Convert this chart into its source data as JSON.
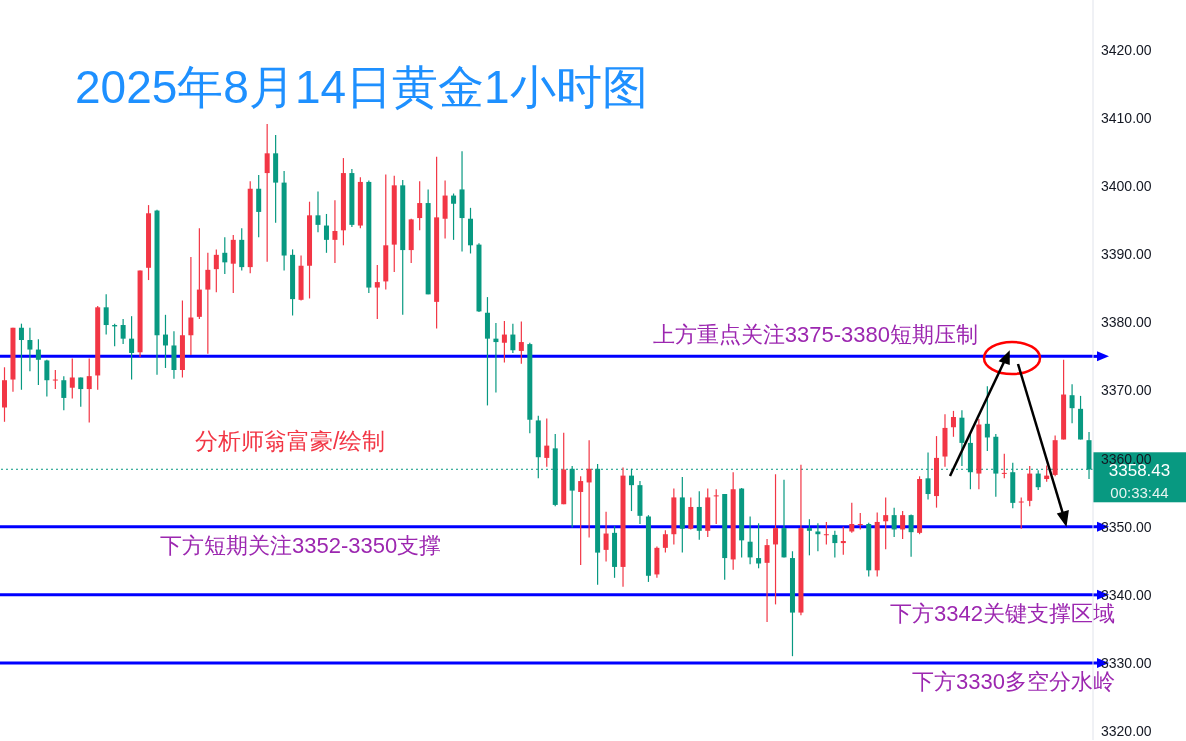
{
  "chart_data": {
    "type": "candlestick",
    "title": "2025年8月14日黄金1小时图",
    "categories": [
      null,
      null,
      null,
      null,
      null,
      null,
      null,
      null,
      null,
      null,
      null,
      null,
      null,
      null,
      null,
      null,
      null,
      null,
      null,
      null,
      null,
      null,
      null,
      null,
      null,
      null,
      null,
      null,
      null,
      null,
      null,
      null,
      null,
      null,
      null,
      null,
      null,
      null,
      null,
      null,
      null,
      null,
      null,
      null,
      null,
      null,
      null,
      null,
      null,
      null,
      null,
      null,
      null,
      null,
      null,
      null,
      null,
      null,
      null,
      null,
      null,
      null,
      null,
      null,
      null,
      null,
      null,
      null,
      null,
      null,
      null,
      null,
      null,
      null,
      null,
      null,
      null,
      null,
      null,
      null,
      null,
      null,
      null,
      null,
      null,
      null,
      null,
      null,
      null,
      null,
      null,
      null,
      null,
      null,
      null,
      null,
      null,
      null,
      null,
      null,
      null,
      null,
      null,
      null,
      null,
      null,
      null,
      null,
      null,
      null,
      null,
      null,
      null,
      null,
      null,
      null,
      null,
      null,
      null,
      null,
      null,
      null,
      null,
      null,
      null,
      null,
      null,
      null,
      null
    ],
    "ohlc": [
      [
        3367.5,
        3373.4,
        3365.4,
        3371.5
      ],
      [
        3371.6,
        3379.2,
        3369.8,
        3379.2
      ],
      [
        3379.2,
        3379.8,
        3370.1,
        3377.4
      ],
      [
        3377.4,
        3379.2,
        3372.8,
        3376.0
      ],
      [
        3376.0,
        3377.5,
        3370.8,
        3374.5
      ],
      [
        3374.4,
        3374.5,
        3369.1,
        3371.5
      ],
      [
        3371.5,
        3373.0,
        3370.2,
        3371.6
      ],
      [
        3371.5,
        3372.1,
        3367.1,
        3368.9
      ],
      [
        3370.4,
        3374.7,
        3368.8,
        3371.9
      ],
      [
        3371.9,
        3371.9,
        3367.6,
        3370.2
      ],
      [
        3370.2,
        3374.7,
        3365.3,
        3372.1
      ],
      [
        3372.2,
        3382.4,
        3370.1,
        3382.2
      ],
      [
        3382.2,
        3384.1,
        3378.2,
        3379.6
      ],
      [
        3379.6,
        3379.8,
        3376.5,
        3379.4
      ],
      [
        3379.6,
        3380.5,
        3376.8,
        3377.6
      ],
      [
        3377.6,
        3380.9,
        3371.6,
        3375.5
      ],
      [
        3375.6,
        3387.6,
        3374.9,
        3387.6
      ],
      [
        3388.0,
        3397.2,
        3386.2,
        3396.0
      ],
      [
        3396.4,
        3396.5,
        3372.3,
        3378.1
      ],
      [
        3378.2,
        3381.1,
        3373.3,
        3376.6
      ],
      [
        3376.6,
        3378.7,
        3371.7,
        3373.0
      ],
      [
        3373.0,
        3383.2,
        3371.9,
        3378.1
      ],
      [
        3378.1,
        3389.6,
        3375.2,
        3380.7
      ],
      [
        3380.8,
        3393.8,
        3380.5,
        3384.8
      ],
      [
        3384.8,
        3390.2,
        3375.4,
        3387.7
      ],
      [
        3387.8,
        3390.7,
        3384.4,
        3389.9
      ],
      [
        3390.2,
        3392.5,
        3387.1,
        3388.8
      ],
      [
        3388.6,
        3392.8,
        3384.3,
        3392.1
      ],
      [
        3392.1,
        3393.8,
        3387.6,
        3388.1
      ],
      [
        3388.1,
        3400.7,
        3387.2,
        3399.6
      ],
      [
        3399.6,
        3401.6,
        3392.5,
        3396.2
      ],
      [
        3401.9,
        3409.1,
        3388.9,
        3404.8
      ],
      [
        3404.8,
        3407.5,
        3394.6,
        3400.5
      ],
      [
        3400.5,
        3402.2,
        3387.6,
        3389.8
      ],
      [
        3389.9,
        3390.7,
        3381.0,
        3383.4
      ],
      [
        3383.3,
        3389.8,
        3383.2,
        3388.3
      ],
      [
        3388.3,
        3397.7,
        3383.5,
        3395.7
      ],
      [
        3395.7,
        3399.2,
        3393.2,
        3394.3
      ],
      [
        3394.2,
        3395.9,
        3390.2,
        3392.1
      ],
      [
        3392.1,
        3397.9,
        3388.7,
        3393.4
      ],
      [
        3393.5,
        3404.1,
        3391.3,
        3401.9
      ],
      [
        3401.9,
        3402.5,
        3394.0,
        3394.3
      ],
      [
        3394.2,
        3401.3,
        3393.8,
        3400.6
      ],
      [
        3400.6,
        3400.8,
        3384.3,
        3385.1
      ],
      [
        3385.1,
        3388.4,
        3380.5,
        3385.9
      ],
      [
        3386.0,
        3401.7,
        3384.8,
        3391.3
      ],
      [
        3391.4,
        3401.5,
        3387.4,
        3400.1
      ],
      [
        3400.1,
        3400.9,
        3381.1,
        3390.6
      ],
      [
        3390.6,
        3395.2,
        3388.7,
        3395.1
      ],
      [
        3395.3,
        3400.7,
        3393.5,
        3397.5
      ],
      [
        3397.5,
        3399.5,
        3384.1,
        3384.1
      ],
      [
        3383.0,
        3404.3,
        3379.1,
        3395.4
      ],
      [
        3395.2,
        3400.8,
        3392.3,
        3398.6
      ],
      [
        3398.6,
        3398.9,
        3392.1,
        3397.4
      ],
      [
        3399.5,
        3405.1,
        3390.4,
        3395.3
      ],
      [
        3395.2,
        3396.8,
        3390.1,
        3391.3
      ],
      [
        3391.4,
        3391.6,
        3381.5,
        3381.6
      ],
      [
        3381.4,
        3383.7,
        3367.8,
        3377.6
      ],
      [
        3377.6,
        3379.9,
        3369.7,
        3377.1
      ],
      [
        3377.0,
        3380.2,
        3374.1,
        3378.2
      ],
      [
        3378.2,
        3379.8,
        3375.5,
        3375.9
      ],
      [
        3375.8,
        3380.1,
        3373.9,
        3377.1
      ],
      [
        3376.8,
        3377.0,
        3363.7,
        3365.7
      ],
      [
        3365.6,
        3366.3,
        3357.1,
        3360.2
      ],
      [
        3360.1,
        3365.9,
        3358.8,
        3361.9
      ],
      [
        3361.5,
        3363.6,
        3353.0,
        3353.2
      ],
      [
        3353.3,
        3363.8,
        3353.3,
        3358.4
      ],
      [
        3358.5,
        3358.9,
        3349.9,
        3355.3
      ],
      [
        3355.1,
        3357.4,
        3344.4,
        3356.7
      ],
      [
        3356.5,
        3362.7,
        3348.4,
        3358.5
      ],
      [
        3358.5,
        3359.2,
        3341.5,
        3346.2
      ],
      [
        3346.6,
        3352.2,
        3344.9,
        3349.0
      ],
      [
        3349.1,
        3350.1,
        3342.5,
        3344.1
      ],
      [
        3344.1,
        3358.7,
        3341.2,
        3357.5
      ],
      [
        3357.5,
        3358.5,
        3352.3,
        3356.1
      ],
      [
        3356.1,
        3356.7,
        3350.4,
        3351.6
      ],
      [
        3351.5,
        3351.7,
        3341.9,
        3342.8
      ],
      [
        3343.0,
        3347.1,
        3342.5,
        3346.9
      ],
      [
        3346.9,
        3349.5,
        3346.2,
        3348.9
      ],
      [
        3348.9,
        3355.6,
        3347.4,
        3354.3
      ],
      [
        3354.3,
        3357.3,
        3346.2,
        3349.7
      ],
      [
        3349.7,
        3354.3,
        3349.6,
        3352.9
      ],
      [
        3352.9,
        3355.2,
        3348.1,
        3349.4
      ],
      [
        3349.4,
        3355.6,
        3348.5,
        3354.3
      ],
      [
        3354.5,
        3355.5,
        3350.4,
        3354.6
      ],
      [
        3354.8,
        3354.8,
        3342.2,
        3345.4
      ],
      [
        3345.2,
        3358.0,
        3343.7,
        3355.5
      ],
      [
        3355.6,
        3355.7,
        3345.5,
        3348.0
      ],
      [
        3347.8,
        3351.5,
        3344.5,
        3345.5
      ],
      [
        3345.4,
        3350.5,
        3343.9,
        3344.6
      ],
      [
        3344.7,
        3348.2,
        3336.0,
        3347.3
      ],
      [
        3347.4,
        3357.7,
        3338.6,
        3349.8
      ],
      [
        3349.8,
        3356.9,
        3345.5,
        3345.5
      ],
      [
        3345.4,
        3346.4,
        3331.0,
        3337.4
      ],
      [
        3337.4,
        3359.1,
        3337.0,
        3349.8
      ],
      [
        3349.8,
        3351.1,
        3345.8,
        3349.4
      ],
      [
        3349.3,
        3350.5,
        3346.4,
        3348.9
      ],
      [
        3348.8,
        3350.7,
        3347.4,
        3348.9
      ],
      [
        3348.8,
        3349.4,
        3345.5,
        3347.6
      ],
      [
        3347.6,
        3350.0,
        3345.9,
        3347.9
      ],
      [
        3349.3,
        3353.5,
        3349.1,
        3350.4
      ],
      [
        3350.3,
        3352.0,
        3349.6,
        3350.4
      ],
      [
        3350.4,
        3350.6,
        3342.7,
        3343.6
      ],
      [
        3343.6,
        3352.1,
        3342.7,
        3350.7
      ],
      [
        3350.8,
        3354.3,
        3346.7,
        3351.7
      ],
      [
        3351.7,
        3352.8,
        3348.5,
        3349.6
      ],
      [
        3349.6,
        3352.3,
        3348.2,
        3351.7
      ],
      [
        3351.7,
        3351.8,
        3345.6,
        3349.2
      ],
      [
        3349.1,
        3357.4,
        3348.9,
        3357.0
      ],
      [
        3357.1,
        3360.9,
        3354.0,
        3354.8
      ],
      [
        3354.5,
        3363.3,
        3352.8,
        3360.1
      ],
      [
        3360.3,
        3366.5,
        3358.8,
        3364.5
      ],
      [
        3364.6,
        3367.0,
        3363.2,
        3366.1
      ],
      [
        3366.0,
        3367.1,
        3358.9,
        3362.3
      ],
      [
        3362.3,
        3363.7,
        3355.5,
        3358.0
      ],
      [
        3357.8,
        3365.8,
        3355.5,
        3365.0
      ],
      [
        3365.1,
        3370.6,
        3361.1,
        3363.1
      ],
      [
        3363.2,
        3363.6,
        3354.4,
        3357.8
      ],
      [
        3357.8,
        3360.7,
        3357.1,
        3357.9
      ],
      [
        3358.0,
        3359.4,
        3352.7,
        3353.5
      ],
      [
        3353.6,
        3354.3,
        3349.7,
        3353.7
      ],
      [
        3353.8,
        3358.9,
        3353.0,
        3357.8
      ],
      [
        3357.8,
        3358.3,
        3355.4,
        3355.8
      ],
      [
        3357.0,
        3359.0,
        3356.6,
        3357.5
      ],
      [
        3357.6,
        3363.4,
        3357.4,
        3362.7
      ],
      [
        3362.8,
        3374.5,
        3362.8,
        3369.4
      ],
      [
        3369.3,
        3370.9,
        3365.2,
        3367.4
      ],
      [
        3367.3,
        3369.2,
        3362.8,
        3362.8
      ],
      [
        3362.7,
        3363.9,
        3357.0,
        3358.4
      ]
    ],
    "ylim": [
      3318.7,
      3427.3
    ],
    "yticks": [
      {
        "value": 3320,
        "label": "3320.00"
      },
      {
        "value": 3330,
        "label": "3330.00"
      },
      {
        "value": 3340,
        "label": "3340.00"
      },
      {
        "value": 3350,
        "label": "3350.00"
      },
      {
        "value": 3360,
        "label": "3360.00"
      },
      {
        "value": 3370,
        "label": "3370.00"
      },
      {
        "value": 3380,
        "label": "3380.00"
      },
      {
        "value": 3390,
        "label": "3390.00"
      },
      {
        "value": 3400,
        "label": "3400.00"
      },
      {
        "value": 3410,
        "label": "3410.00"
      },
      {
        "value": 3420,
        "label": "3420.00"
      }
    ],
    "tick_labels": "y",
    "ref_lines": [
      {
        "axis": "y",
        "value": 3375,
        "label": "上方重点关注3375-3380短期压制",
        "color": "#0000ff"
      },
      {
        "axis": "y",
        "value": 3350,
        "label": "下方短期关注3352-3350支撑",
        "color": "#0000ff"
      },
      {
        "axis": "y",
        "value": 3340,
        "label": "下方3342关键支撑区域",
        "color": "#0000ff"
      },
      {
        "axis": "y",
        "value": 3330,
        "label": "下方3330多空分水岭",
        "color": "#0000ff"
      },
      {
        "axis": "y",
        "value": 3358.43,
        "label": "3358.43",
        "color": "#089981",
        "line_style": "dotted"
      }
    ],
    "annotations": [
      "分析师翁富豪/绘制",
      "00:33:44"
    ]
  }
}
